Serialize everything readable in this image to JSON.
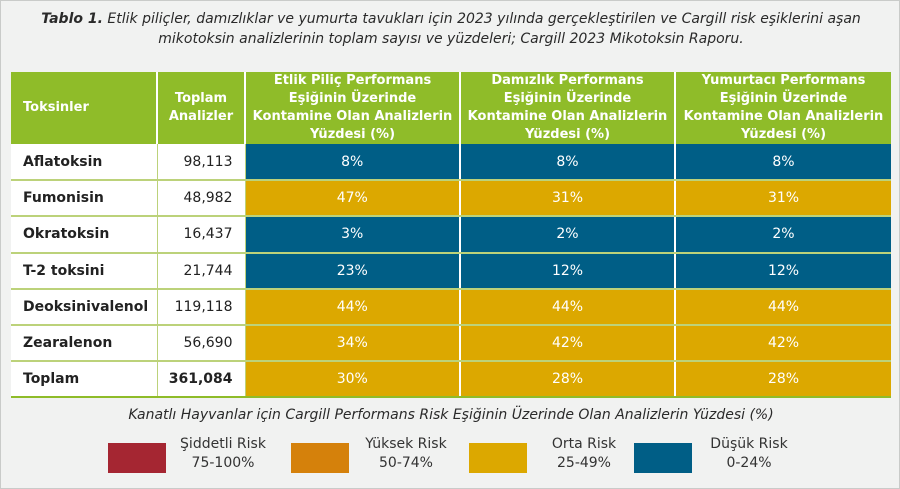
{
  "caption": {
    "label": "Tablo 1.",
    "text": "Etlik piliçler, damızlıklar ve yumurta tavukları için 2023 yılında gerçekleştirilen ve Cargill risk eşiklerini aşan mikotoksin analizlerinin toplam sayısı ve yüzdeleri; Cargill 2023 Mikotoksin Raporu."
  },
  "colors": {
    "header": "#8fbc29",
    "low": "#005e86",
    "medium": "#dca800",
    "high": "#d5810b",
    "severe": "#a52632"
  },
  "table": {
    "headers": [
      "Toksinler",
      "Toplam Analizler",
      "Etlik Piliç Performans Eşiğinin Üzerinde Kontamine Olan Analizlerin Yüzdesi (%)",
      "Damızlık Performans Eşiğinin Üzerinde Kontamine Olan Analizlerin Yüzdesi (%)",
      "Yumurtacı Performans Eşiğinin Üzerinde Kontamine Olan Analizlerin Yüzdesi (%)"
    ],
    "rows": [
      {
        "toxin": "Aflatoksin",
        "total": "98,113",
        "values": [
          "8%",
          "8%",
          "8%"
        ],
        "levels": [
          "low",
          "low",
          "low"
        ]
      },
      {
        "toxin": "Fumonisin",
        "total": "48,982",
        "values": [
          "47%",
          "31%",
          "31%"
        ],
        "levels": [
          "medium",
          "medium",
          "medium"
        ]
      },
      {
        "toxin": "Okratoksin",
        "total": "16,437",
        "values": [
          "3%",
          "2%",
          "2%"
        ],
        "levels": [
          "low",
          "low",
          "low"
        ]
      },
      {
        "toxin": "T-2 toksini",
        "total": "21,744",
        "values": [
          "23%",
          "12%",
          "12%"
        ],
        "levels": [
          "low",
          "low",
          "low"
        ]
      },
      {
        "toxin": "Deoksinivalenol",
        "total": "119,118",
        "values": [
          "44%",
          "44%",
          "44%"
        ],
        "levels": [
          "medium",
          "medium",
          "medium"
        ]
      },
      {
        "toxin": "Zearalenon",
        "total": "56,690",
        "values": [
          "34%",
          "42%",
          "42%"
        ],
        "levels": [
          "medium",
          "medium",
          "medium"
        ]
      },
      {
        "toxin": "Toplam",
        "total": "361,084",
        "values": [
          "30%",
          "28%",
          "28%"
        ],
        "levels": [
          "medium",
          "medium",
          "medium"
        ]
      }
    ]
  },
  "legend": {
    "title": "Kanatlı Hayvanlar için Cargill Performans Risk Eşiğinin Üzerinde Olan Analizlerin Yüzdesi (%)",
    "items": [
      {
        "label": "Şiddetli Risk",
        "range": "75-100%",
        "color": "#a52632"
      },
      {
        "label": "Yüksek Risk",
        "range": "50-74%",
        "color": "#d5810b"
      },
      {
        "label": "Orta Risk",
        "range": "25-49%",
        "color": "#dca800"
      },
      {
        "label": "Düşük Risk",
        "range": "0-24%",
        "color": "#005e86"
      }
    ]
  }
}
